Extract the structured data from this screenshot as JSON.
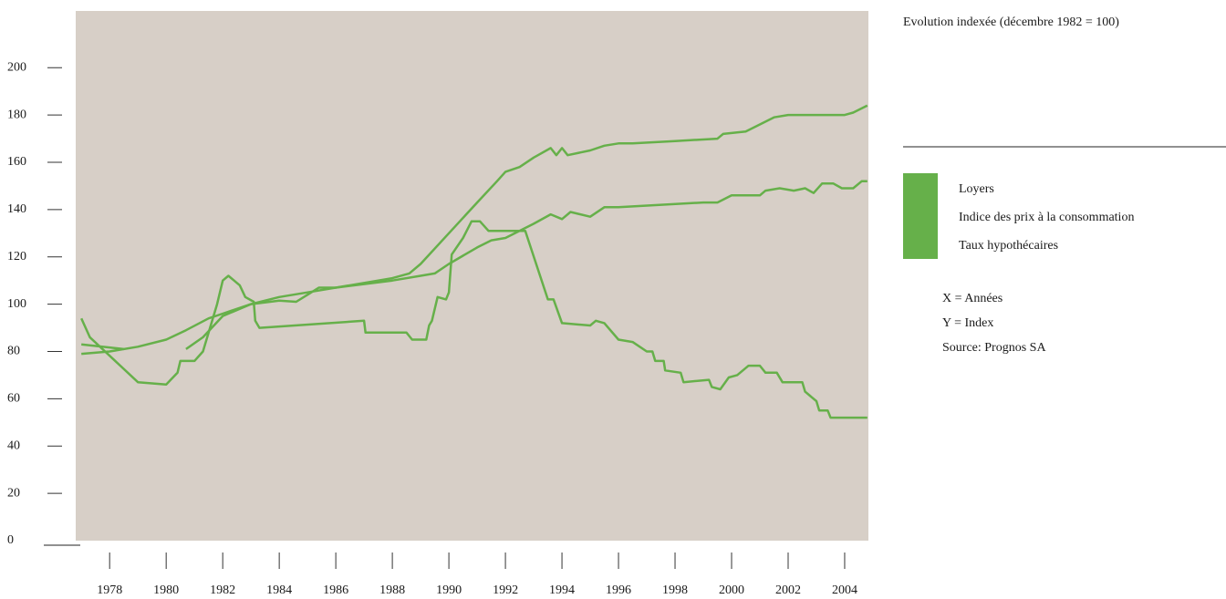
{
  "chart_data": {
    "type": "line",
    "title": "Evolution indexée (décembre 1982 = 100)",
    "notes": [
      "X = Années",
      "Y = Index",
      "Source: Prognos SA"
    ],
    "xlim": [
      1976.8,
      2004.84
    ],
    "xticks": [
      1978,
      1980,
      1982,
      1984,
      1986,
      1988,
      1990,
      1992,
      1994,
      1996,
      1998,
      2000,
      2002,
      2004
    ],
    "ylim": [
      0,
      224
    ],
    "yticks": [
      0,
      20,
      40,
      60,
      80,
      100,
      120,
      140,
      160,
      180,
      200
    ],
    "background": "#d7cfc7",
    "series": [
      {
        "name": "Loyers",
        "color": "#66b04a",
        "x": [
          1977,
          1978,
          1979,
          1980,
          1980.7,
          1981.5,
          1982,
          1983,
          1984,
          1985,
          1986,
          1987,
          1988,
          1988.6,
          1989,
          1990,
          1991,
          1991.7,
          1992,
          1992.5,
          1993,
          1993.6,
          1993.8,
          1994,
          1994.2,
          1995,
          1995.5,
          1996,
          1996.5,
          1998,
          1999.5,
          1999.7,
          2000.5,
          2001,
          2001.5,
          2002,
          2003,
          2004,
          2004.3,
          2004.8
        ],
        "values": [
          79,
          80,
          82,
          85,
          89,
          94,
          96,
          100,
          103,
          105,
          107,
          109,
          111,
          113,
          117,
          130,
          143,
          152,
          156,
          158,
          162,
          166,
          163,
          166,
          163,
          165,
          167,
          168,
          168,
          169,
          170,
          172,
          173,
          176,
          179,
          180,
          180,
          180,
          181,
          184
        ]
      },
      {
        "name": "Indice des prix à la consommation",
        "color": "#66b04a",
        "x": [
          1977,
          1978.5,
          null,
          1980.7,
          1981.3,
          1982,
          1983,
          1984,
          1984.6,
          1985,
          1985.4,
          1986,
          1988,
          1989,
          1989.5,
          1990,
          1991,
          1991.5,
          1992,
          1993,
          1993.6,
          1994,
          1994.3,
          1995,
          1995.5,
          1996,
          1999,
          1999.5,
          2000,
          2001,
          2001.2,
          2001.7,
          2002.2,
          2002.6,
          2002.9,
          2003.2,
          2003.6,
          2003.9,
          2004.3,
          2004.6,
          2004.8
        ],
        "values": [
          83,
          81,
          null,
          81,
          86,
          95,
          100,
          101.5,
          101,
          104,
          107,
          107,
          110,
          112,
          113,
          117,
          124,
          127,
          128,
          134,
          138,
          136,
          139,
          137,
          141,
          141,
          143,
          143,
          146,
          146,
          148,
          149,
          148,
          149,
          147,
          151,
          151,
          149,
          149,
          152,
          152
        ]
      },
      {
        "name": "Taux hypothécaires",
        "color": "#66b04a",
        "x": [
          1977,
          1977.3,
          1979,
          1980,
          1980.4,
          1980.5,
          1981,
          1981.3,
          1981.8,
          1982,
          1982.2,
          1982.6,
          1982.8,
          1983.1,
          1983.15,
          1983.3,
          1987,
          1987.05,
          1988.5,
          1988.7,
          1989.2,
          1989.3,
          1989.4,
          1989.6,
          1989.9,
          1990,
          1990.1,
          1990.5,
          1990.8,
          1991.1,
          1991.4,
          1992.7,
          1993.5,
          1993.7,
          1994,
          1995,
          1995.2,
          1995.5,
          1996,
          1996.5,
          1997,
          1997.2,
          1997.3,
          1997.6,
          1997.65,
          1998.2,
          1998.3,
          1999.2,
          1999.3,
          1999.6,
          1999.9,
          2000.2,
          2000.6,
          2001,
          2001.2,
          2001.6,
          2001.8,
          2002.5,
          2002.6,
          2003,
          2003.1,
          2003.4,
          2003.5,
          2004.8
        ],
        "values": [
          94,
          86,
          67,
          66,
          71,
          76,
          76,
          80,
          100,
          110,
          112,
          108,
          103,
          101,
          93,
          90,
          93,
          88,
          88,
          85,
          85,
          91,
          93,
          103,
          102,
          105,
          121,
          128,
          135,
          135,
          131,
          131,
          102,
          102,
          92,
          91,
          93,
          92,
          85,
          84,
          80,
          80,
          76,
          76,
          72,
          71,
          67,
          68,
          65,
          64,
          69,
          70,
          74,
          74,
          71,
          71,
          67,
          67,
          63,
          59,
          55,
          55,
          52,
          52
        ]
      }
    ]
  }
}
